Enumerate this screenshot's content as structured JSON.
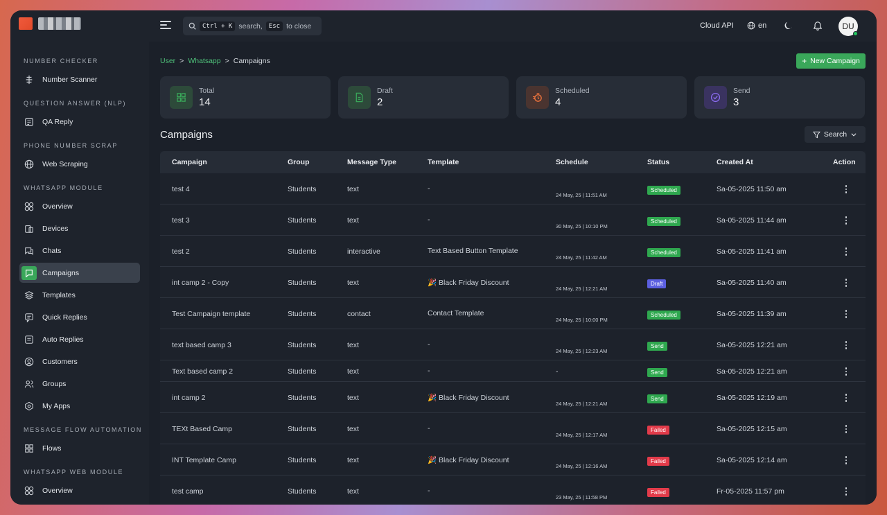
{
  "topbar": {
    "search": {
      "hint_key": "Ctrl + K",
      "hint_search": "search,",
      "hint_esc": "Esc",
      "hint_close": "to close"
    },
    "cloud_api": "Cloud API",
    "lang": "en",
    "avatar": "DU"
  },
  "sidebar": {
    "sections": [
      {
        "title": "NUMBER CHECKER",
        "items": [
          {
            "label": "Number Scanner",
            "icon": "scanner-icon"
          }
        ]
      },
      {
        "title": "QUESTION ANSWER (NLP)",
        "items": [
          {
            "label": "QA Reply",
            "icon": "reply-icon"
          }
        ]
      },
      {
        "title": "PHONE NUMBER SCRAP",
        "items": [
          {
            "label": "Web Scraping",
            "icon": "globe-icon"
          }
        ]
      },
      {
        "title": "WHATSAPP MODULE",
        "items": [
          {
            "label": "Overview",
            "icon": "grid-icon"
          },
          {
            "label": "Devices",
            "icon": "device-icon"
          },
          {
            "label": "Chats",
            "icon": "chat-icon"
          },
          {
            "label": "Campaigns",
            "icon": "campaign-icon",
            "active": true
          },
          {
            "label": "Templates",
            "icon": "layers-icon"
          },
          {
            "label": "Quick Replies",
            "icon": "quick-reply-icon"
          },
          {
            "label": "Auto Replies",
            "icon": "auto-reply-icon"
          },
          {
            "label": "Customers",
            "icon": "user-circle-icon"
          },
          {
            "label": "Groups",
            "icon": "group-icon"
          },
          {
            "label": "My Apps",
            "icon": "apps-icon"
          }
        ]
      },
      {
        "title": "MESSAGE FLOW AUTOMATION",
        "items": [
          {
            "label": "Flows",
            "icon": "flows-icon"
          }
        ]
      },
      {
        "title": "WHATSAPP WEB MODULE",
        "items": [
          {
            "label": "Overview",
            "icon": "grid-icon"
          }
        ]
      }
    ]
  },
  "breadcrumb": {
    "user": "User",
    "whatsapp": "Whatsapp",
    "current": "Campaigns",
    "sep": ">"
  },
  "new_campaign_label": "New Campaign",
  "stats": [
    {
      "label": "Total",
      "value": "14",
      "icon": "grid-icon",
      "color": "#3aa75a"
    },
    {
      "label": "Draft",
      "value": "2",
      "icon": "document-icon",
      "color": "#3aa75a"
    },
    {
      "label": "Scheduled",
      "value": "4",
      "icon": "timer-icon",
      "color": "#f2753d"
    },
    {
      "label": "Send",
      "value": "3",
      "icon": "check-circle-icon",
      "color": "#8b6cf0"
    }
  ],
  "page_title": "Campaigns",
  "search_label": "Search",
  "table": {
    "headers": [
      "Campaign",
      "Group",
      "Message Type",
      "Template",
      "Schedule",
      "Status",
      "Created At",
      "Action"
    ],
    "rows": [
      {
        "campaign": "test 4",
        "group": "Students",
        "type": "text",
        "template": "-",
        "schedule": "24 May, 25 | 11:51 AM",
        "status": "Scheduled",
        "created": "Sa-05-2025 11:50 am"
      },
      {
        "campaign": "test 3",
        "group": "Students",
        "type": "text",
        "template": "-",
        "schedule": "30 May, 25 | 10:10 PM",
        "status": "Scheduled",
        "created": "Sa-05-2025 11:44 am"
      },
      {
        "campaign": "test 2",
        "group": "Students",
        "type": "interactive",
        "template": "Text Based Button Template",
        "schedule": "24 May, 25 | 11:42 AM",
        "status": "Scheduled",
        "created": "Sa-05-2025 11:41 am"
      },
      {
        "campaign": "int camp 2 - Copy",
        "group": "Students",
        "type": "text",
        "template": "🎉 Black Friday Discount",
        "schedule": "24 May, 25 | 12:21 AM",
        "status": "Draft",
        "created": "Sa-05-2025 11:40 am"
      },
      {
        "campaign": "Test Campaign template",
        "group": "Students",
        "type": "contact",
        "template": "Contact Template",
        "schedule": "24 May, 25 | 10:00 PM",
        "status": "Scheduled",
        "created": "Sa-05-2025 11:39 am"
      },
      {
        "campaign": "text based camp 3",
        "group": "Students",
        "type": "text",
        "template": "-",
        "schedule": "24 May, 25 | 12:23 AM",
        "status": "Send",
        "created": "Sa-05-2025 12:21 am"
      },
      {
        "campaign": "Text based camp 2",
        "group": "Students",
        "type": "text",
        "template": "-",
        "schedule": "-",
        "status": "Send",
        "created": "Sa-05-2025 12:21 am"
      },
      {
        "campaign": "int camp 2",
        "group": "Students",
        "type": "text",
        "template": "🎉 Black Friday Discount",
        "schedule": "24 May, 25 | 12:21 AM",
        "status": "Send",
        "created": "Sa-05-2025 12:19 am"
      },
      {
        "campaign": "TEXt Based Camp",
        "group": "Students",
        "type": "text",
        "template": "-",
        "schedule": "24 May, 25 | 12:17 AM",
        "status": "Failed",
        "created": "Sa-05-2025 12:15 am"
      },
      {
        "campaign": "INT Template Camp",
        "group": "Students",
        "type": "text",
        "template": "🎉 Black Friday Discount",
        "schedule": "24 May, 25 | 12:16 AM",
        "status": "Failed",
        "created": "Sa-05-2025 12:14 am"
      },
      {
        "campaign": "test camp",
        "group": "Students",
        "type": "text",
        "template": "-",
        "schedule": "23 May, 25 | 11:58 PM",
        "status": "Failed",
        "created": "Fr-05-2025 11:57 pm"
      }
    ]
  },
  "status_colors": {
    "Scheduled": "#2fa84f",
    "Draft": "#5b5fe0",
    "Send": "#2fa84f",
    "Failed": "#e23b4a"
  }
}
